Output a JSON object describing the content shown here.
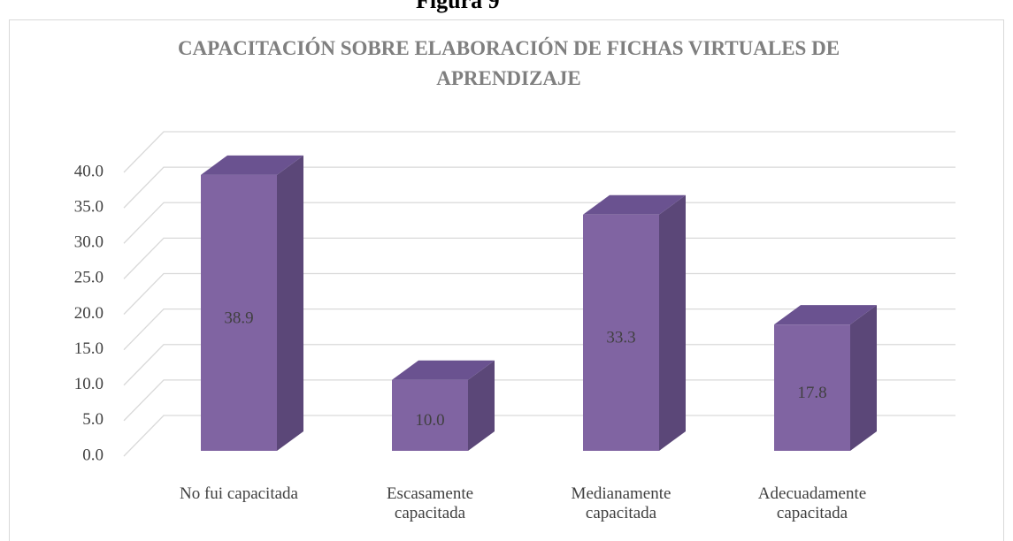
{
  "caption": "Figura 9",
  "chart_data": {
    "type": "bar3d",
    "title": "CAPACITACIÓN SOBRE ELABORACIÓN DE FICHAS VIRTUALES DE APRENDIZAJE",
    "categories": [
      "No fui capacitada",
      "Escasamente capacitada",
      "Medianamente capacitada",
      "Adecuadamente capacitada"
    ],
    "values": [
      38.9,
      10.0,
      33.3,
      17.8
    ],
    "value_labels": [
      "38.9",
      "10.0",
      "33.3",
      "17.8"
    ],
    "color": "#8064a2",
    "ylim": [
      0,
      40
    ],
    "yticks": [
      {
        "value": 0,
        "label": "0.0"
      },
      {
        "value": 5,
        "label": "5.0"
      },
      {
        "value": 10,
        "label": "10.0"
      },
      {
        "value": 15,
        "label": "15.0"
      },
      {
        "value": 20,
        "label": "20.0"
      },
      {
        "value": 25,
        "label": "25.0"
      },
      {
        "value": 30,
        "label": "30.0"
      },
      {
        "value": 35,
        "label": "35.0"
      },
      {
        "value": 40,
        "label": "40.0"
      }
    ],
    "grid": true
  }
}
